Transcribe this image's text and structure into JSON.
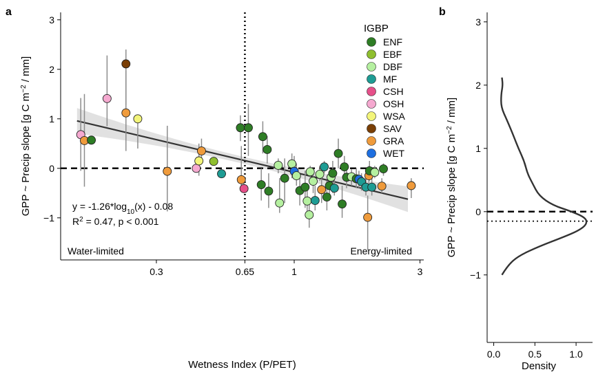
{
  "chart_data": [
    {
      "panel": "a",
      "type": "scatter",
      "xlabel": "Wetness Index (P/PET)",
      "ylabel_parts": [
        "GPP ~ Precip slope [g C m",
        "−2",
        " / mm]"
      ],
      "x_scale": "log",
      "xlim": [
        0.13,
        3.1
      ],
      "ylim": [
        -1.85,
        3.15
      ],
      "x_ticks": [
        0.3,
        0.65,
        1,
        3
      ],
      "x_tick_labels": [
        "0.3",
        "0.65",
        "1",
        "3"
      ],
      "y_ticks": [
        -1,
        0,
        1,
        2,
        3
      ],
      "y_tick_labels": [
        "−1",
        "0",
        "1",
        "2",
        "3"
      ],
      "vline_x": 0.65,
      "hline_y": 0,
      "regression": {
        "slope": -1.26,
        "intercept": -0.08,
        "x_range": [
          0.15,
          2.7
        ],
        "ci_halfwidth_min": 0.07,
        "ci_halfwidth_max": 0.26
      },
      "equation_parts": [
        "y = -1.26*log",
        "10",
        "(x) - 0.08"
      ],
      "stats_parts": [
        "R",
        "2",
        " = 0.47, p < 0.001"
      ],
      "corner_left": "Water-limited",
      "corner_right": "Energy-limited",
      "legend_title": "IGBP",
      "categories": [
        {
          "name": "ENF",
          "color": "#2e7d25"
        },
        {
          "name": "EBF",
          "color": "#8fbf2f"
        },
        {
          "name": "DBF",
          "color": "#b5f0a0"
        },
        {
          "name": "MF",
          "color": "#1e9c94"
        },
        {
          "name": "CSH",
          "color": "#e6508a"
        },
        {
          "name": "OSH",
          "color": "#f5a9d0"
        },
        {
          "name": "WSA",
          "color": "#f3f57a"
        },
        {
          "name": "SAV",
          "color": "#7a3f06"
        },
        {
          "name": "GRA",
          "color": "#ef9b3c"
        },
        {
          "name": "WET",
          "color": "#1e6fe0"
        }
      ],
      "points": [
        {
          "x": 0.155,
          "y": 0.68,
          "lo": -0.05,
          "hi": 1.42,
          "type": "OSH"
        },
        {
          "x": 0.16,
          "y": 0.56,
          "lo": -0.37,
          "hi": 1.5,
          "type": "GRA"
        },
        {
          "x": 0.17,
          "y": 0.57,
          "lo": 0.57,
          "hi": 0.57,
          "type": "ENF"
        },
        {
          "x": 0.195,
          "y": 1.41,
          "lo": 0.85,
          "hi": 2.28,
          "type": "OSH"
        },
        {
          "x": 0.23,
          "y": 2.11,
          "lo": 1.28,
          "hi": 2.4,
          "type": "SAV"
        },
        {
          "x": 0.23,
          "y": 1.12,
          "lo": 0.35,
          "hi": 1.97,
          "type": "GRA"
        },
        {
          "x": 0.255,
          "y": 1.0,
          "lo": 0.4,
          "hi": 1.0,
          "type": "WSA"
        },
        {
          "x": 0.33,
          "y": -0.06,
          "lo": -0.87,
          "hi": 0.86,
          "type": "GRA"
        },
        {
          "x": 0.425,
          "y": 0.0,
          "lo": 0.0,
          "hi": 0.0,
          "type": "OSH"
        },
        {
          "x": 0.435,
          "y": 0.15,
          "lo": -0.15,
          "hi": 0.5,
          "type": "WSA"
        },
        {
          "x": 0.445,
          "y": 0.35,
          "lo": 0.1,
          "hi": 0.6,
          "type": "GRA"
        },
        {
          "x": 0.495,
          "y": 0.14,
          "lo": 0.14,
          "hi": 0.14,
          "type": "EBF"
        },
        {
          "x": 0.53,
          "y": -0.11,
          "lo": -0.11,
          "hi": -0.11,
          "type": "MF"
        },
        {
          "x": 0.625,
          "y": 0.82,
          "lo": 0.55,
          "hi": 1.07,
          "type": "ENF"
        },
        {
          "x": 0.63,
          "y": -0.23,
          "lo": -0.35,
          "hi": 0.45,
          "type": "GRA"
        },
        {
          "x": 0.645,
          "y": -0.41,
          "lo": -0.45,
          "hi": -0.3,
          "type": "CSH"
        },
        {
          "x": 0.67,
          "y": 0.82,
          "lo": 0.25,
          "hi": 1.3,
          "type": "ENF"
        },
        {
          "x": 0.76,
          "y": 0.64,
          "lo": 0.3,
          "hi": 0.95,
          "type": "ENF"
        },
        {
          "x": 0.79,
          "y": 0.38,
          "lo": 0.1,
          "hi": 0.65,
          "type": "ENF"
        },
        {
          "x": 0.75,
          "y": -0.33,
          "lo": -0.65,
          "hi": 0.0,
          "type": "ENF"
        },
        {
          "x": 0.8,
          "y": -0.46,
          "lo": -0.8,
          "hi": -0.1,
          "type": "ENF"
        },
        {
          "x": 0.87,
          "y": 0.06,
          "lo": -0.1,
          "hi": 0.2,
          "type": "DBF"
        },
        {
          "x": 0.88,
          "y": -0.7,
          "lo": -0.9,
          "hi": -0.2,
          "type": "DBF"
        },
        {
          "x": 0.92,
          "y": -0.2,
          "lo": -0.7,
          "hi": 0.2,
          "type": "ENF"
        },
        {
          "x": 0.98,
          "y": 0.09,
          "lo": -0.2,
          "hi": 0.3,
          "type": "DBF"
        },
        {
          "x": 1.0,
          "y": -0.06,
          "lo": -0.2,
          "hi": 0.25,
          "type": "WET"
        },
        {
          "x": 1.02,
          "y": -0.15,
          "lo": -0.35,
          "hi": 0.1,
          "type": "DBF"
        },
        {
          "x": 1.05,
          "y": -0.45,
          "lo": -0.75,
          "hi": -0.1,
          "type": "ENF"
        },
        {
          "x": 1.1,
          "y": -0.38,
          "lo": -0.8,
          "hi": -0.05,
          "type": "ENF"
        },
        {
          "x": 1.12,
          "y": -0.66,
          "lo": -0.95,
          "hi": -0.3,
          "type": "DBF"
        },
        {
          "x": 1.14,
          "y": -0.94,
          "lo": -1.2,
          "hi": -0.6,
          "type": "DBF"
        },
        {
          "x": 1.15,
          "y": -0.07,
          "lo": -0.2,
          "hi": 0.05,
          "type": "DBF"
        },
        {
          "x": 1.18,
          "y": -0.26,
          "lo": -0.5,
          "hi": 0.0,
          "type": "DBF"
        },
        {
          "x": 1.2,
          "y": -0.65,
          "lo": -0.85,
          "hi": -0.35,
          "type": "MF"
        },
        {
          "x": 1.25,
          "y": -0.12,
          "lo": -0.25,
          "hi": 0.05,
          "type": "DBF"
        },
        {
          "x": 1.27,
          "y": -0.43,
          "lo": -0.7,
          "hi": -0.15,
          "type": "GRA"
        },
        {
          "x": 1.3,
          "y": 0.03,
          "lo": -0.1,
          "hi": 0.15,
          "type": "MF"
        },
        {
          "x": 1.33,
          "y": -0.58,
          "lo": -0.85,
          "hi": -0.25,
          "type": "ENF"
        },
        {
          "x": 1.36,
          "y": -0.35,
          "lo": -0.55,
          "hi": -0.1,
          "type": "ENF"
        },
        {
          "x": 1.38,
          "y": -0.18,
          "lo": -0.3,
          "hi": -0.05,
          "type": "DBF"
        },
        {
          "x": 1.4,
          "y": -0.1,
          "lo": -0.5,
          "hi": 0.15,
          "type": "ENF"
        },
        {
          "x": 1.42,
          "y": -0.4,
          "lo": -0.55,
          "hi": -0.2,
          "type": "MF"
        },
        {
          "x": 1.47,
          "y": 0.3,
          "lo": 0.0,
          "hi": 0.6,
          "type": "ENF"
        },
        {
          "x": 1.52,
          "y": -0.72,
          "lo": -1.0,
          "hi": -0.35,
          "type": "ENF"
        },
        {
          "x": 1.55,
          "y": 0.03,
          "lo": -0.2,
          "hi": 0.25,
          "type": "ENF"
        },
        {
          "x": 1.58,
          "y": -0.18,
          "lo": -0.4,
          "hi": 0.0,
          "type": "ENF"
        },
        {
          "x": 1.65,
          "y": -0.17,
          "lo": -0.35,
          "hi": -0.02,
          "type": "DBF"
        },
        {
          "x": 1.72,
          "y": -0.21,
          "lo": -0.4,
          "hi": 0.0,
          "type": "ENF"
        },
        {
          "x": 1.76,
          "y": -0.22,
          "lo": -0.4,
          "hi": -0.05,
          "type": "WET"
        },
        {
          "x": 1.8,
          "y": -0.27,
          "lo": -0.45,
          "hi": -0.1,
          "type": "MF"
        },
        {
          "x": 1.87,
          "y": -0.38,
          "lo": -0.55,
          "hi": -0.15,
          "type": "MF"
        },
        {
          "x": 1.9,
          "y": -0.99,
          "lo": -1.65,
          "hi": -0.55,
          "type": "GRA"
        },
        {
          "x": 1.92,
          "y": -0.15,
          "lo": -0.3,
          "hi": 0.05,
          "type": "GRA"
        },
        {
          "x": 1.93,
          "y": -0.05,
          "lo": -0.25,
          "hi": 0.15,
          "type": "ENF"
        },
        {
          "x": 1.97,
          "y": -0.38,
          "lo": -0.55,
          "hi": -0.2,
          "type": "MF"
        },
        {
          "x": 2.02,
          "y": -0.08,
          "lo": -0.2,
          "hi": 0.05,
          "type": "DBF"
        },
        {
          "x": 2.18,
          "y": -0.01,
          "lo": -0.15,
          "hi": 0.1,
          "type": "ENF"
        },
        {
          "x": 2.15,
          "y": -0.36,
          "lo": -0.5,
          "hi": -0.2,
          "type": "GRA"
        },
        {
          "x": 2.78,
          "y": -0.35,
          "lo": -0.6,
          "hi": -0.2,
          "type": "GRA"
        }
      ]
    },
    {
      "panel": "b",
      "type": "line",
      "xlabel": "Density",
      "ylabel_parts": [
        "GPP ~ Precip slope [g C m",
        "−2",
        " / mm]"
      ],
      "xlim": [
        -0.08,
        1.2
      ],
      "ylim": [
        -1.85,
        3.15
      ],
      "x_ticks": [
        0.0,
        0.5,
        1.0
      ],
      "x_tick_labels": [
        "0.0",
        "0.5",
        "1.0"
      ],
      "y_ticks": [
        -1,
        0,
        1,
        2,
        3
      ],
      "y_tick_labels": [
        "−1",
        "0",
        "1",
        "2",
        "3"
      ],
      "hline_y": 0,
      "median_y": -0.15,
      "density_curve": [
        {
          "y": -1.0,
          "d": 0.1
        },
        {
          "y": -0.85,
          "d": 0.17
        },
        {
          "y": -0.7,
          "d": 0.3
        },
        {
          "y": -0.55,
          "d": 0.55
        },
        {
          "y": -0.4,
          "d": 0.85
        },
        {
          "y": -0.3,
          "d": 1.03
        },
        {
          "y": -0.2,
          "d": 1.13
        },
        {
          "y": -0.1,
          "d": 1.12
        },
        {
          "y": 0.0,
          "d": 0.95
        },
        {
          "y": 0.1,
          "d": 0.72
        },
        {
          "y": 0.25,
          "d": 0.55
        },
        {
          "y": 0.45,
          "d": 0.47
        },
        {
          "y": 0.6,
          "d": 0.41
        },
        {
          "y": 0.8,
          "d": 0.37
        },
        {
          "y": 1.0,
          "d": 0.3
        },
        {
          "y": 1.2,
          "d": 0.24
        },
        {
          "y": 1.45,
          "d": 0.16
        },
        {
          "y": 1.65,
          "d": 0.09
        },
        {
          "y": 1.85,
          "d": 0.09
        },
        {
          "y": 2.0,
          "d": 0.11
        },
        {
          "y": 2.12,
          "d": 0.1
        }
      ]
    }
  ]
}
